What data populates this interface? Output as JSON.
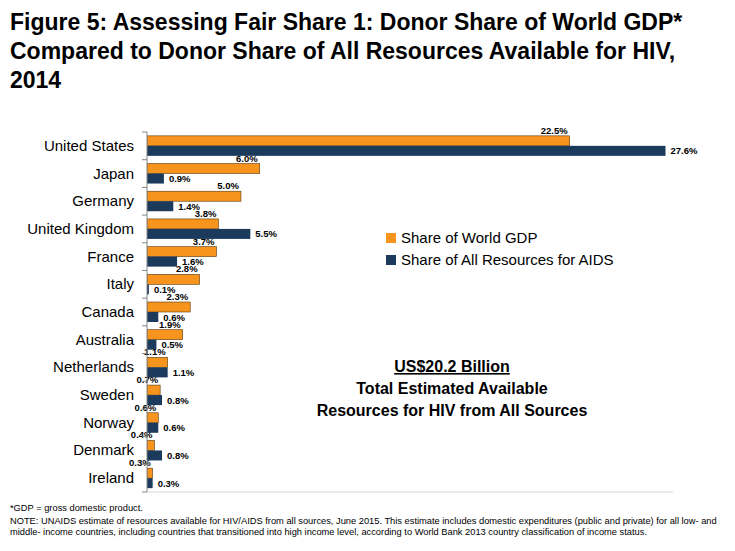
{
  "chart_data": {
    "type": "bar",
    "orientation": "horizontal",
    "title": "Figure 5: Assessing Fair Share 1: Donor Share of World GDP* Compared to Donor Share of All Resources Available for HIV, 2014",
    "categories": [
      "United States",
      "Japan",
      "Germany",
      "United Kingdom",
      "France",
      "Italy",
      "Canada",
      "Australia",
      "Netherlands",
      "Sweden",
      "Norway",
      "Denmark",
      "Ireland"
    ],
    "series": [
      {
        "name": "Share of World GDP",
        "color": "#F7941D",
        "values": [
          22.5,
          6.0,
          5.0,
          3.8,
          3.7,
          2.8,
          2.3,
          1.9,
          1.1,
          0.7,
          0.6,
          0.4,
          0.3
        ],
        "value_labels": [
          "22.5%",
          "6.0%",
          "5.0%",
          "3.8%",
          "3.7%",
          "2.8%",
          "2.3%",
          "1.9%",
          "1.1%",
          "0.7%",
          "0.6%",
          "0.4%",
          "0.3%"
        ]
      },
      {
        "name": "Share of All Resources for AIDS",
        "color": "#1B3A5C",
        "values": [
          27.6,
          0.9,
          1.4,
          5.5,
          1.6,
          0.1,
          0.6,
          0.5,
          1.1,
          0.8,
          0.6,
          0.8,
          0.3
        ],
        "value_labels": [
          "27.6%",
          "0.9%",
          "1.4%",
          "5.5%",
          "1.6%",
          "0.1%",
          "0.6%",
          "0.5%",
          "1.1%",
          "0.8%",
          "0.6%",
          "0.8%",
          "0.3%"
        ]
      }
    ],
    "xlim": [
      0,
      28
    ],
    "tick_labels": false,
    "grid": false,
    "data_labels": true,
    "legend": "right",
    "annotations": [
      "US$20.2 Billion",
      "Total Estimated Available",
      "Resources for HIV from All Sources"
    ],
    "notes": [
      "*GDP = gross domestic product.",
      "NOTE: UNAIDS estimate of resources available for HIV/AIDS from all sources, June 2015. This estimate includes domestic expenditures (public and private) for all low- and",
      "middle- income countries, including countries that transitioned into high income level, according to World Bank 2013 country classification of income status."
    ]
  }
}
